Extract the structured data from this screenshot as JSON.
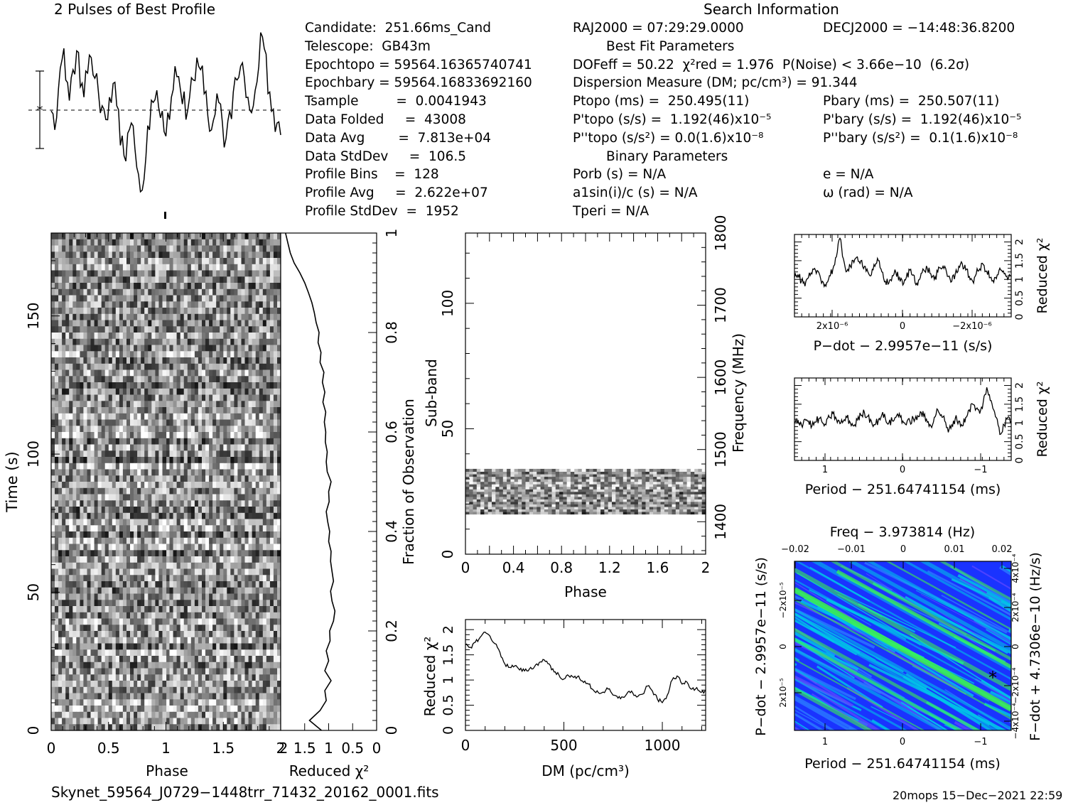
{
  "headers": {
    "profile_title": "2 Pulses of Best Profile",
    "search_title": "Search Information"
  },
  "info": {
    "col1": [
      "Candidate:  251.66ms_Cand",
      "Telescope:  GB43m",
      "Epochtopo = 59564.16365740741",
      "Epochbary = 59564.16833692160",
      "Tsample         =  0.0041943",
      "Data Folded     =  43008",
      "Data Avg        =  7.813e+04",
      "Data StdDev     =  106.5",
      "Profile Bins    =  128",
      "Profile Avg     =  2.622e+07",
      "Profile StdDev  =  1952"
    ],
    "col2": [
      "RAJ2000 = 07:29:29.0000",
      "        Best Fit Parameters",
      "DOFeff = 50.22  χ²red = 1.976  P(Noise) < 3.66e−10  (6.2σ)",
      "Dispersion Measure (DM; pc/cm³) = 91.344",
      "Ptopo (ms) =  250.495(11)",
      "P'topo (s/s) =  1.192(46)x10⁻⁵",
      "P''topo (s/s²) = 0.0(1.6)x10⁻⁸",
      "        Binary Parameters",
      "Porb (s) = N/A",
      "a1sin(i)/c (s) = N/A",
      "Tperi = N/A"
    ],
    "col3": [
      "DECJ2000 = −14:48:36.8200",
      "",
      "",
      "",
      "Pbary (ms) =  250.507(11)",
      "P'bary (s/s) =  1.192(46)x10⁻⁵",
      "P''bary (s/s²) =  0.1(1.6)x10⁻⁸",
      "",
      "e = N/A",
      "ω (rad) = N/A",
      ""
    ]
  },
  "footer": {
    "filename": "Skynet_59564_J0729−1448trr_71432_20162_0001.fits",
    "stamp": "20mops 15−Dec−2021 22:59"
  },
  "chart_data": [
    {
      "type": "line",
      "title": "2 Pulses of Best Profile",
      "xlabel": "",
      "ylabel": "",
      "x_range": [
        0,
        2
      ],
      "profile": [
        0.52,
        0.41,
        0.65,
        0.82,
        0.7,
        0.58,
        0.76,
        0.87,
        0.66,
        0.6,
        0.74,
        0.83,
        0.71,
        0.62,
        0.55,
        0.47,
        0.6,
        0.68,
        0.55,
        0.32,
        0.26,
        0.39,
        0.45,
        0.3,
        0.15,
        0.06,
        0.25,
        0.41,
        0.57,
        0.64,
        0.48,
        0.4,
        0.51,
        0.6,
        0.78,
        0.72,
        0.56,
        0.47,
        0.6,
        0.7,
        0.83,
        0.76,
        0.62,
        0.49,
        0.41,
        0.5,
        0.57,
        0.45,
        0.36,
        0.52,
        0.63,
        0.7,
        0.78,
        0.72,
        0.6,
        0.51,
        0.64,
        0.78,
        0.95,
        0.85,
        0.63,
        0.53,
        0.45,
        0.38
      ]
    },
    {
      "type": "heatmap",
      "xlabel": "Phase",
      "ylabel": "Time (s)",
      "xlim": [
        0,
        2
      ],
      "ylim": [
        0,
        180
      ],
      "x_ticks": [
        0,
        0.5,
        1,
        1.5
      ],
      "y_ticks": [
        0,
        50,
        100,
        150
      ],
      "right_ylabel": "Fraction of Observation",
      "right_ticks": [
        0,
        0.2,
        0.4,
        0.6,
        0.8,
        1
      ],
      "n_rows": 80,
      "n_cols": 64
    },
    {
      "type": "line",
      "xlabel": "Reduced χ²",
      "x_ticks_labels": [
        "2",
        "1.5",
        "1",
        "0.5",
        "0"
      ],
      "xlim": [
        2,
        0
      ],
      "fraction": [
        0.0,
        0.02,
        0.04,
        0.06,
        0.08,
        0.1,
        0.12,
        0.14,
        0.16,
        0.18,
        0.2,
        0.22,
        0.24,
        0.26,
        0.28,
        0.3,
        0.32,
        0.34,
        0.36,
        0.38,
        0.4,
        0.42,
        0.44,
        0.46,
        0.48,
        0.5,
        0.52,
        0.54,
        0.56,
        0.58,
        0.6,
        0.62,
        0.64,
        0.66,
        0.68,
        0.7,
        0.72,
        0.74,
        0.76,
        0.78,
        0.8,
        0.82,
        0.84,
        0.86,
        0.88,
        0.9,
        0.92,
        0.94,
        0.96,
        0.98,
        1.0
      ],
      "redchi": [
        1.15,
        1.4,
        1.18,
        1.05,
        1.08,
        0.95,
        1.08,
        1.0,
        1.05,
        0.97,
        0.98,
        0.9,
        0.87,
        0.93,
        0.96,
        0.9,
        0.93,
        0.96,
        0.95,
        1.0,
        0.98,
        1.02,
        1.05,
        0.99,
        1.0,
        0.95,
        1.03,
        1.05,
        1.03,
        1.07,
        1.06,
        1.09,
        1.06,
        1.12,
        1.08,
        1.13,
        1.1,
        1.18,
        1.16,
        1.22,
        1.2,
        1.26,
        1.3,
        1.35,
        1.42,
        1.5,
        1.6,
        1.72,
        1.8,
        1.85,
        1.9
      ]
    },
    {
      "type": "heatmap",
      "xlabel": "Phase",
      "ylabel": "Sub-band",
      "xlim": [
        0,
        2
      ],
      "ylim": [
        0,
        128
      ],
      "x_ticks": [
        "0",
        "0.4",
        "0.8",
        "1.2",
        "1.6",
        "2"
      ],
      "y_ticks": [
        0,
        50,
        100
      ],
      "right_ylabel": "Frequency (MHz)",
      "right_ticks": [
        1400,
        1500,
        1600,
        1700,
        1800
      ],
      "filled_subbands": [
        16,
        34
      ]
    },
    {
      "type": "line",
      "xlabel": "DM (pc/cm³)",
      "ylabel": "Reduced χ²",
      "xlim": [
        0,
        1220
      ],
      "ylim": [
        0,
        2.2
      ],
      "x_ticks": [
        0,
        500,
        1000
      ],
      "y_ticks": [
        "0",
        "0.5",
        "1",
        "1.5",
        "2"
      ],
      "x": [
        0,
        25,
        50,
        75,
        100,
        125,
        150,
        175,
        200,
        225,
        250,
        275,
        300,
        325,
        350,
        375,
        400,
        425,
        450,
        475,
        500,
        525,
        550,
        575,
        600,
        625,
        650,
        675,
        700,
        725,
        750,
        775,
        800,
        825,
        850,
        875,
        900,
        925,
        950,
        975,
        1000,
        1025,
        1050,
        1075,
        1100,
        1125,
        1150,
        1175,
        1200,
        1220
      ],
      "y": [
        1.7,
        1.65,
        1.75,
        1.85,
        1.95,
        1.87,
        1.72,
        1.55,
        1.32,
        1.25,
        1.28,
        1.2,
        1.18,
        1.22,
        1.26,
        1.35,
        1.4,
        1.32,
        1.16,
        1.1,
        1.02,
        1.08,
        1.05,
        1.08,
        0.95,
        0.92,
        0.8,
        0.75,
        0.76,
        0.82,
        0.7,
        0.64,
        0.66,
        0.76,
        0.74,
        0.67,
        0.72,
        0.88,
        0.78,
        0.62,
        0.55,
        0.7,
        1.0,
        1.08,
        0.92,
        0.96,
        0.82,
        0.85,
        0.76,
        0.8
      ]
    },
    {
      "type": "line",
      "xlabel": "P−dot − 2.9957e−11 (s/s)",
      "ylabel": "Reduced χ²",
      "xlim": [
        4e-06,
        -4e-06
      ],
      "ylim": [
        0,
        2.2
      ],
      "x_ticks": [
        "2x10⁻⁶",
        "0",
        "−2x10⁻⁶"
      ],
      "y_ticks": [
        "0",
        "0.5",
        "1",
        "1.5",
        "2"
      ],
      "y": [
        1.05,
        1.12,
        0.95,
        0.82,
        1.05,
        1.15,
        1.25,
        1.18,
        0.95,
        0.82,
        1.1,
        1.28,
        1.6,
        2.1,
        1.55,
        1.22,
        1.35,
        1.45,
        1.6,
        1.5,
        1.35,
        1.2,
        1.12,
        1.35,
        1.5,
        1.2,
        0.95,
        0.9,
        1.1,
        1.18,
        1.05,
        0.85,
        1.05,
        1.25,
        1.12,
        0.9,
        1.05,
        1.25,
        1.3,
        1.15,
        1.0,
        1.2,
        1.28,
        1.35,
        1.08,
        0.95,
        1.15,
        1.35,
        1.42,
        1.25,
        1.08,
        0.95,
        1.15,
        1.28,
        1.4,
        1.22,
        1.05,
        0.92,
        1.12,
        1.25,
        1.15,
        1.0,
        1.08
      ]
    },
    {
      "type": "line",
      "xlabel": "Period − 251.64741154 (ms)",
      "ylabel": "Reduced χ²",
      "xlim": [
        1.5,
        -1.4
      ],
      "ylim": [
        0,
        2.2
      ],
      "x_ticks": [
        "1",
        "0",
        "−1"
      ],
      "y_ticks": [
        "0",
        "0.5",
        "1",
        "1.5",
        "2"
      ],
      "y": [
        1.02,
        1.08,
        0.95,
        1.1,
        1.05,
        0.92,
        1.02,
        1.12,
        1.0,
        0.95,
        1.15,
        1.25,
        1.1,
        0.98,
        1.05,
        1.15,
        1.0,
        0.92,
        1.08,
        1.2,
        1.28,
        1.18,
        1.05,
        0.95,
        1.08,
        1.22,
        1.12,
        1.0,
        1.06,
        1.15,
        1.25,
        1.05,
        0.95,
        1.05,
        1.12,
        1.08,
        1.3,
        1.18,
        1.02,
        0.92,
        1.15,
        1.35,
        1.22,
        1.05,
        0.75,
        0.95,
        1.12,
        1.05,
        0.92,
        1.15,
        1.35,
        1.5,
        1.38,
        1.25,
        1.55,
        1.95,
        1.6,
        1.35,
        1.1,
        0.7,
        0.95,
        1.15,
        1.05
      ]
    },
    {
      "type": "heatmap",
      "title": "Freq − 3.973814 (Hz)",
      "xlabel": "Period − 251.64741154 (ms)",
      "ylabel": "P−dot − 2.9957e−11 (s/s)",
      "right_ylabel": "F−dot + 4.7306e−10 (Hz/s)",
      "x_ticks": [
        "1",
        "0",
        "−1"
      ],
      "top_ticks": [
        "−0.02",
        "−0.01",
        "0",
        "0.01",
        "0.02"
      ],
      "y_ticks": [
        "−2x10⁻⁵",
        "0",
        "2x10⁻⁵"
      ],
      "right_ticks": [
        "4x10⁻⁴",
        "2x10⁻⁴",
        "0",
        "−2x10⁻⁴",
        "−4x10⁻⁴"
      ],
      "colors": {
        "bg": "#1a33ff",
        "mid": "#00c8e6",
        "high": "#40ff40",
        "marker": "#000000"
      }
    }
  ]
}
